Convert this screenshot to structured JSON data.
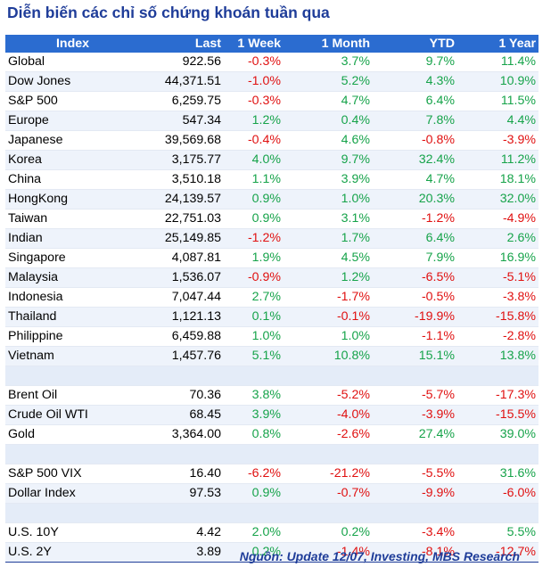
{
  "title": "Diễn biến các chỉ số chứng khoán tuần qua",
  "headers": [
    "Index",
    "Last",
    "1 Week",
    "1 Month",
    "YTD",
    "1 Year"
  ],
  "colors": {
    "header_bg": "#2b6cd0",
    "title": "#1f3d99",
    "positive": "#16a34a",
    "negative": "#e01010"
  },
  "groups": [
    [
      {
        "name": "Global",
        "last": "922.56",
        "week": "-0.3%",
        "month": "3.7%",
        "ytd": "9.7%",
        "year": "11.4%"
      },
      {
        "name": "Dow Jones",
        "last": "44,371.51",
        "week": "-1.0%",
        "month": "5.2%",
        "ytd": "4.3%",
        "year": "10.9%"
      },
      {
        "name": "S&P 500",
        "last": "6,259.75",
        "week": "-0.3%",
        "month": "4.7%",
        "ytd": "6.4%",
        "year": "11.5%"
      },
      {
        "name": "Europe",
        "last": "547.34",
        "week": "1.2%",
        "month": "0.4%",
        "ytd": "7.8%",
        "year": "4.4%"
      },
      {
        "name": "Japanese",
        "last": "39,569.68",
        "week": "-0.4%",
        "month": "4.6%",
        "ytd": "-0.8%",
        "year": "-3.9%"
      },
      {
        "name": "Korea",
        "last": "3,175.77",
        "week": "4.0%",
        "month": "9.7%",
        "ytd": "32.4%",
        "year": "11.2%"
      },
      {
        "name": "China",
        "last": "3,510.18",
        "week": "1.1%",
        "month": "3.9%",
        "ytd": "4.7%",
        "year": "18.1%"
      },
      {
        "name": "HongKong",
        "last": "24,139.57",
        "week": "0.9%",
        "month": "1.0%",
        "ytd": "20.3%",
        "year": "32.0%"
      },
      {
        "name": "Taiwan",
        "last": "22,751.03",
        "week": "0.9%",
        "month": "3.1%",
        "ytd": "-1.2%",
        "year": "-4.9%"
      },
      {
        "name": "Indian",
        "last": "25,149.85",
        "week": "-1.2%",
        "month": "1.7%",
        "ytd": "6.4%",
        "year": "2.6%"
      },
      {
        "name": "Singapore",
        "last": "4,087.81",
        "week": "1.9%",
        "month": "4.5%",
        "ytd": "7.9%",
        "year": "16.9%"
      },
      {
        "name": "Malaysia",
        "last": "1,536.07",
        "week": "-0.9%",
        "month": "1.2%",
        "ytd": "-6.5%",
        "year": "-5.1%"
      },
      {
        "name": "Indonesia",
        "last": "7,047.44",
        "week": "2.7%",
        "month": "-1.7%",
        "ytd": "-0.5%",
        "year": "-3.8%"
      },
      {
        "name": "Thailand",
        "last": "1,121.13",
        "week": "0.1%",
        "month": "-0.1%",
        "ytd": "-19.9%",
        "year": "-15.8%"
      },
      {
        "name": "Philippine",
        "last": "6,459.88",
        "week": "1.0%",
        "month": "1.0%",
        "ytd": "-1.1%",
        "year": "-2.8%"
      },
      {
        "name": "Vietnam",
        "last": "1,457.76",
        "week": "5.1%",
        "month": "10.8%",
        "ytd": "15.1%",
        "year": "13.8%"
      }
    ],
    [
      {
        "name": "Brent Oil",
        "last": "70.36",
        "week": "3.8%",
        "month": "-5.2%",
        "ytd": "-5.7%",
        "year": "-17.3%"
      },
      {
        "name": "Crude Oil WTI",
        "last": "68.45",
        "week": "3.9%",
        "month": "-4.0%",
        "ytd": "-3.9%",
        "year": "-15.5%"
      },
      {
        "name": "Gold",
        "last": "3,364.00",
        "week": "0.8%",
        "month": "-2.6%",
        "ytd": "27.4%",
        "year": "39.0%"
      }
    ],
    [
      {
        "name": "S&P 500 VIX",
        "last": "16.40",
        "week": "-6.2%",
        "month": "-21.2%",
        "ytd": "-5.5%",
        "year": "31.6%"
      },
      {
        "name": "Dollar Index",
        "last": "97.53",
        "week": "0.9%",
        "month": "-0.7%",
        "ytd": "-9.9%",
        "year": "-6.0%"
      }
    ],
    [
      {
        "name": "U.S. 10Y",
        "last": "4.42",
        "week": "2.0%",
        "month": "0.2%",
        "ytd": "-3.4%",
        "year": "5.5%"
      },
      {
        "name": "U.S. 2Y",
        "last": "3.89",
        "week": "0.2%",
        "month": "-1.4%",
        "ytd": "-8.1%",
        "year": "-12.7%"
      }
    ]
  ],
  "source": "Nguồn: Update 12/07, Investing, MBS Research"
}
